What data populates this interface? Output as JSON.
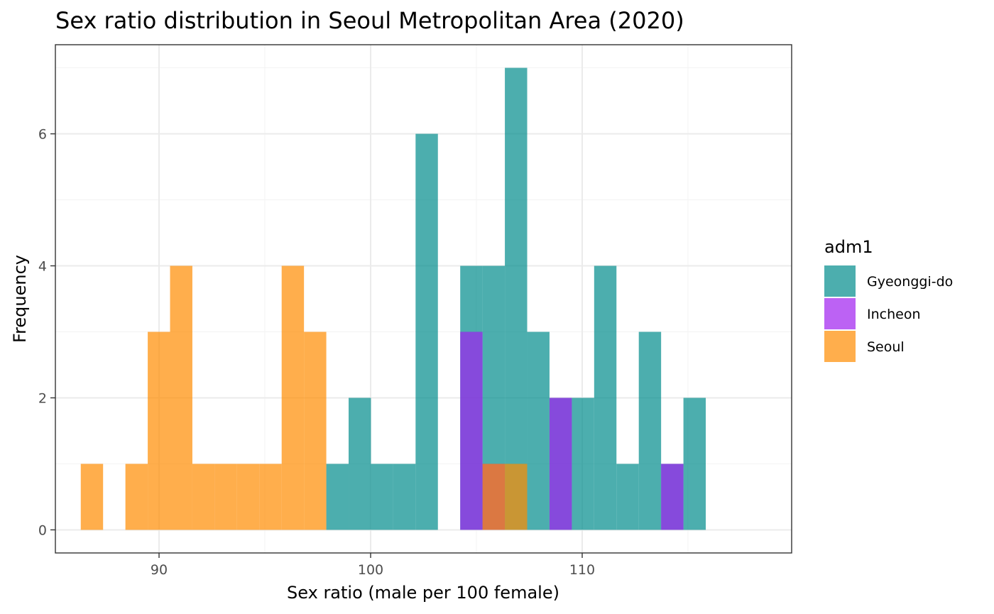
{
  "chart_data": {
    "type": "bar",
    "subtype": "overlapping-histogram",
    "title": "Sex ratio distribution in Seoul Metropolitan Area (2020)",
    "xlabel": "Sex ratio (male per 100 female)",
    "ylabel": "Frequency",
    "xlim": [
      85.1,
      119.9
    ],
    "ylim": [
      -0.35,
      7.35
    ],
    "x_ticks": [
      90,
      100,
      110
    ],
    "y_ticks": [
      0,
      2,
      4,
      6
    ],
    "x_minor_ticks": [
      85,
      95,
      105,
      115
    ],
    "y_minor_ticks": [
      1,
      3,
      5,
      7
    ],
    "grid": true,
    "bin_start": 86.3,
    "bin_width": 1.055,
    "bin_count": 30,
    "opacity": 0.7,
    "legend": {
      "title": "adm1",
      "position": "right"
    },
    "series": [
      {
        "name": "Gyeonggi-do",
        "color": "#008B8B",
        "values": [
          0,
          0,
          0,
          0,
          0,
          0,
          0,
          0,
          0,
          0,
          0,
          1,
          2,
          1,
          1,
          6,
          0,
          4,
          4,
          7,
          3,
          2,
          2,
          4,
          1,
          3,
          1,
          2,
          0,
          0
        ]
      },
      {
        "name": "Incheon",
        "color": "#A020F0",
        "values": [
          0,
          0,
          0,
          0,
          0,
          0,
          0,
          0,
          0,
          0,
          0,
          0,
          0,
          0,
          0,
          0,
          0,
          3,
          1,
          0,
          0,
          2,
          0,
          0,
          0,
          0,
          1,
          0,
          0,
          0
        ]
      },
      {
        "name": "Seoul",
        "color": "#FF8C00",
        "values": [
          1,
          0,
          1,
          3,
          4,
          1,
          1,
          1,
          1,
          4,
          3,
          0,
          0,
          0,
          0,
          0,
          0,
          0,
          1,
          1,
          0,
          0,
          0,
          0,
          0,
          0,
          0,
          0,
          0,
          0
        ]
      }
    ]
  }
}
